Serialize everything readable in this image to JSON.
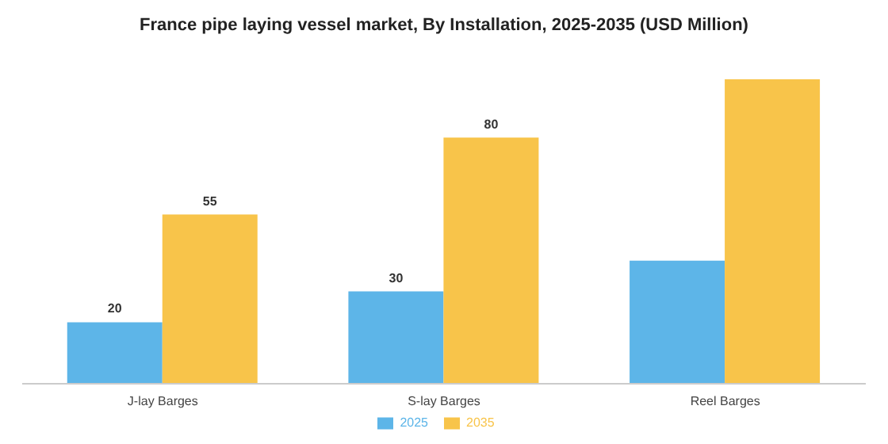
{
  "chart_data": {
    "type": "bar",
    "title": "France pipe laying vessel market, By Installation, 2025-2035 (USD Million)",
    "categories": [
      "J-lay Barges",
      "S-lay Barges",
      "Reel Barges"
    ],
    "series": [
      {
        "name": "2025",
        "color": "#5db5e8",
        "values": [
          20,
          30,
          40
        ],
        "value_labels": [
          "20",
          "30",
          null
        ]
      },
      {
        "name": "2035",
        "color": "#f8c44a",
        "values": [
          55,
          80,
          99
        ],
        "value_labels": [
          "55",
          "80",
          null
        ]
      }
    ],
    "grid": false,
    "legend": "bottom",
    "tick_labels": "x"
  }
}
